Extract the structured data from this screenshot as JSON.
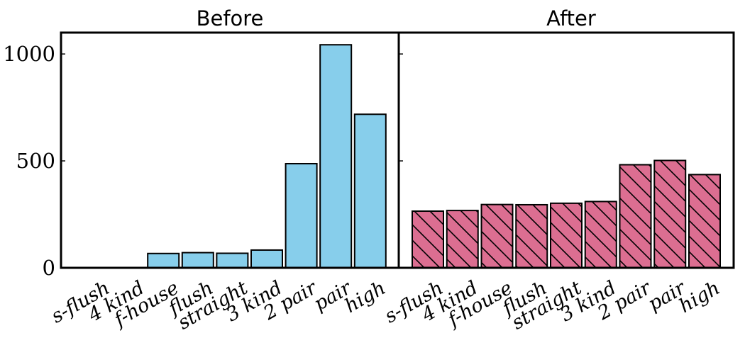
{
  "chart_data": {
    "type": "bar",
    "categories": [
      "s-flush",
      "4 kind",
      "f-house",
      "flush",
      "straight",
      "3 kind",
      "2 pair",
      "pair",
      "high"
    ],
    "ylim": [
      0,
      1100
    ],
    "yticks": [
      0,
      500,
      1000
    ],
    "grid": false,
    "panels": [
      {
        "title": "Before",
        "values": [
          0,
          1,
          67,
          71,
          68,
          83,
          487,
          1043,
          718
        ],
        "color": "#87ceeb",
        "hatch": "none"
      },
      {
        "title": "After",
        "values": [
          265,
          268,
          296,
          295,
          302,
          310,
          482,
          502,
          436
        ],
        "color": "#dc6e91",
        "hatch": "diagonal"
      }
    ]
  }
}
